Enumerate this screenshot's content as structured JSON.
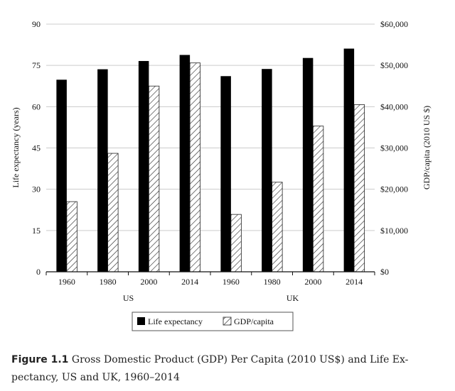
{
  "chart_data": {
    "type": "bar",
    "title": "",
    "x_categories": [
      "1960",
      "1980",
      "2000",
      "2014",
      "1960",
      "1980",
      "2000",
      "2014"
    ],
    "groups": [
      {
        "label": "US",
        "categories": [
          "1960",
          "1980",
          "2000",
          "2014"
        ]
      },
      {
        "label": "UK",
        "categories": [
          "1960",
          "1980",
          "2000",
          "2014"
        ]
      }
    ],
    "series": [
      {
        "name": "Life expectancy",
        "axis": "left",
        "fill": "solid",
        "values": [
          69.8,
          73.6,
          76.6,
          78.8,
          71.1,
          73.7,
          77.7,
          81.1
        ]
      },
      {
        "name": "GDP/capita",
        "axis": "right",
        "fill": "hatched",
        "values": [
          17000,
          28700,
          45000,
          50600,
          13900,
          21700,
          35300,
          40500
        ]
      }
    ],
    "ylabel_left": "Life expectancy (years)",
    "ylabel_right": "GDP/capita (2010 US $)",
    "ylim_left": [
      0,
      90
    ],
    "ylim_right": [
      0,
      60000
    ],
    "yticks_left": [
      "0",
      "15",
      "30",
      "45",
      "60",
      "75",
      "90"
    ],
    "yticks_right": [
      "$0",
      "$10,000",
      "$20,000",
      "$30,000",
      "$40,000",
      "$50,000",
      "$60,000"
    ],
    "grid": true,
    "legend_position": "bottom-center"
  },
  "colors": {
    "bar_solid": "#000000",
    "hatch": "#222222",
    "grid": "#cccccc"
  },
  "caption": {
    "label": "Figure 1.1",
    "text": " Gross Domestic Product (GDP) Per Capita (2010 US$) and Life Ex-",
    "text2": "pectancy, US and UK, 1960–2014"
  }
}
